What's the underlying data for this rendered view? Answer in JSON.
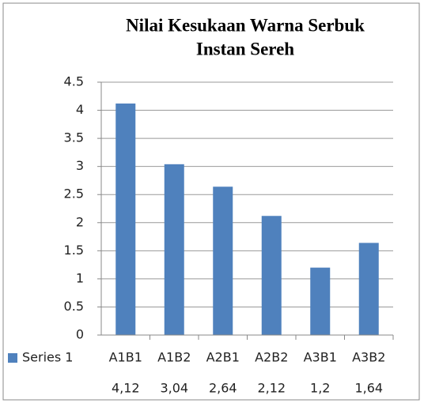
{
  "chart_data": {
    "type": "bar",
    "title": [
      "Nilai Kesukaan Warna  Serbuk",
      "Instan Sereh"
    ],
    "categories": [
      "A1B1",
      "A1B2",
      "A2B1",
      "A2B2",
      "A3B1",
      "A3B2"
    ],
    "series": [
      {
        "name": "Series 1",
        "color": "#4f81bd",
        "values": [
          4.12,
          3.04,
          2.64,
          2.12,
          1.2,
          1.64
        ],
        "value_labels": [
          "4,12",
          "3,04",
          "2,64",
          "2,12",
          "1,2",
          "1,64"
        ]
      }
    ],
    "ylim": [
      0,
      4.5
    ],
    "yticks": [
      0,
      0.5,
      1,
      1.5,
      2,
      2.5,
      3,
      3.5,
      4,
      4.5
    ],
    "grid": true
  }
}
